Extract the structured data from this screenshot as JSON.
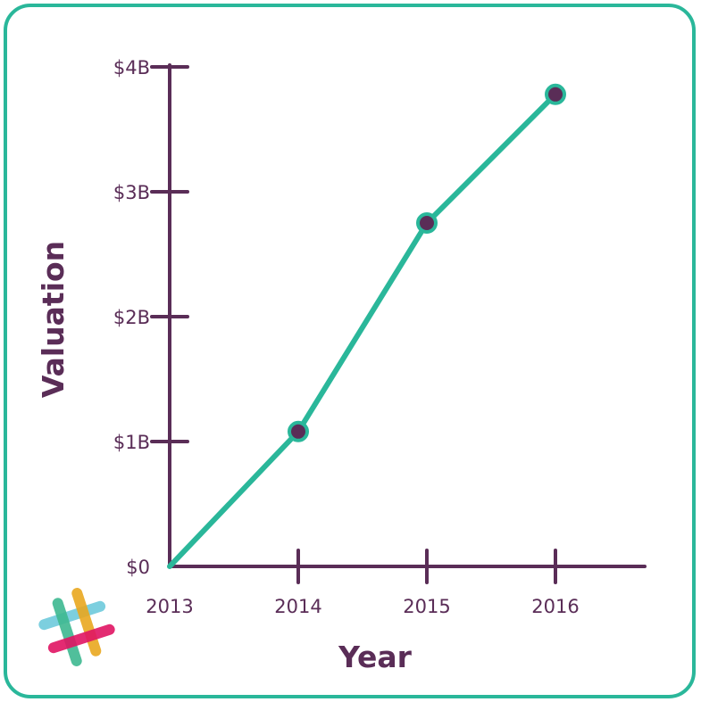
{
  "chart_data": {
    "type": "line",
    "title": "",
    "xlabel": "Year",
    "ylabel": "Valuation",
    "categories": [
      "2013",
      "2014",
      "2015",
      "2016"
    ],
    "y_ticks": [
      {
        "value": 0,
        "label": "$0"
      },
      {
        "value": 1,
        "label": "$1B"
      },
      {
        "value": 2,
        "label": "$2B"
      },
      {
        "value": 3,
        "label": "$3B"
      },
      {
        "value": 4,
        "label": "$4B"
      }
    ],
    "ylim": [
      0,
      4
    ],
    "y_unit": "billions of dollars",
    "series": [
      {
        "values": [
          0,
          1.08,
          2.75,
          3.78
        ]
      }
    ],
    "grid": false,
    "legend": "none"
  },
  "colors": {
    "frame": "#2ab79a",
    "axis": "#5a2d57",
    "line": "#2ab79a",
    "marker_fill": "#5a2d57",
    "marker_stroke": "#2ab79a",
    "text": "#5a2d57"
  },
  "logo": {
    "icon": "slack-hash-logo-icon",
    "colors": [
      "#6ecadc",
      "#e9a820",
      "#3eb991",
      "#e01563"
    ]
  }
}
